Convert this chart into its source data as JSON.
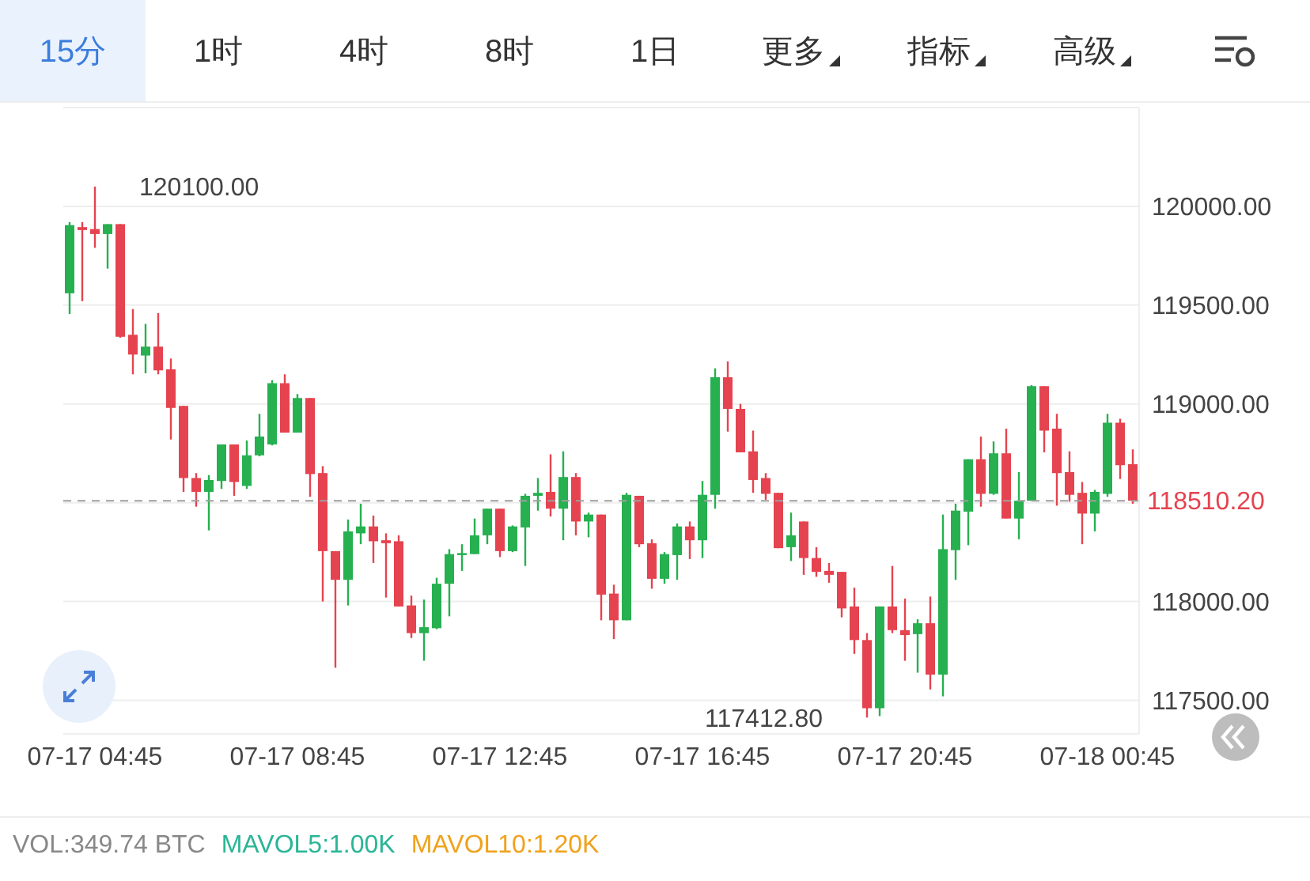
{
  "chart_data": {
    "type": "candlestick",
    "categories": [
      null,
      null,
      "07-17 04:45",
      null,
      null,
      null,
      null,
      null,
      null,
      null,
      null,
      null,
      null,
      null,
      null,
      null,
      null,
      null,
      "07-17 08:45",
      null,
      null,
      null,
      null,
      null,
      null,
      null,
      null,
      null,
      null,
      null,
      null,
      null,
      null,
      null,
      "07-17 12:45",
      null,
      null,
      null,
      null,
      null,
      null,
      null,
      null,
      null,
      null,
      null,
      null,
      null,
      null,
      null,
      "07-17 16:45",
      null,
      null,
      null,
      null,
      null,
      null,
      null,
      null,
      null,
      null,
      null,
      null,
      null,
      null,
      null,
      "07-17 20:45",
      null,
      null,
      null,
      null,
      null,
      null,
      null,
      null,
      null,
      null,
      null,
      null,
      null,
      null,
      null,
      "07-18 00:45",
      null,
      null
    ],
    "ohlc": [
      [
        119560,
        119920,
        119455,
        119905
      ],
      [
        119895,
        119920,
        119520,
        119880
      ],
      [
        119885,
        120100,
        119790,
        119860
      ],
      [
        119860,
        119910,
        119685,
        119910
      ],
      [
        119910,
        119910,
        119335,
        119340
      ],
      [
        119350,
        119480,
        119150,
        119250
      ],
      [
        119245,
        119405,
        119155,
        119290
      ],
      [
        119290,
        119460,
        119150,
        119170
      ],
      [
        119175,
        119230,
        118820,
        118980
      ],
      [
        118990,
        118990,
        118555,
        118625
      ],
      [
        118625,
        118650,
        118480,
        118555
      ],
      [
        118555,
        118640,
        118360,
        118615
      ],
      [
        118610,
        118795,
        118570,
        118795
      ],
      [
        118795,
        118795,
        118535,
        118605
      ],
      [
        118585,
        118815,
        118570,
        118740
      ],
      [
        118740,
        118950,
        118735,
        118835
      ],
      [
        118795,
        119120,
        118790,
        119105
      ],
      [
        119105,
        119150,
        118855,
        118855
      ],
      [
        118855,
        119050,
        118855,
        119030
      ],
      [
        119030,
        119030,
        118530,
        118645
      ],
      [
        118650,
        118685,
        118000,
        118255
      ],
      [
        118255,
        118255,
        117665,
        118110
      ],
      [
        118110,
        118415,
        117980,
        118355
      ],
      [
        118345,
        118495,
        118290,
        118380
      ],
      [
        118380,
        118435,
        118195,
        118305
      ],
      [
        118310,
        118345,
        118020,
        118295
      ],
      [
        118305,
        118335,
        117975,
        117975
      ],
      [
        117980,
        118030,
        117815,
        117840
      ],
      [
        117840,
        118010,
        117700,
        117870
      ],
      [
        117865,
        118120,
        117860,
        118090
      ],
      [
        118090,
        118265,
        117925,
        118240
      ],
      [
        118235,
        118290,
        118155,
        118245
      ],
      [
        118240,
        118420,
        118240,
        118335
      ],
      [
        118335,
        118470,
        118290,
        118470
      ],
      [
        118470,
        118470,
        118225,
        118255
      ],
      [
        118255,
        118385,
        118250,
        118380
      ],
      [
        118375,
        118545,
        118180,
        118535
      ],
      [
        118535,
        118625,
        118460,
        118550
      ],
      [
        118555,
        118745,
        118430,
        118470
      ],
      [
        118470,
        118760,
        118310,
        118630
      ],
      [
        118630,
        118650,
        118335,
        118405
      ],
      [
        118405,
        118450,
        118325,
        118440
      ],
      [
        118440,
        118440,
        117905,
        118035
      ],
      [
        118040,
        118085,
        117810,
        117905
      ],
      [
        117905,
        118550,
        117905,
        118540
      ],
      [
        118535,
        118535,
        118275,
        118290
      ],
      [
        118295,
        118315,
        118065,
        118115
      ],
      [
        118115,
        118250,
        118090,
        118240
      ],
      [
        118235,
        118395,
        118110,
        118380
      ],
      [
        118380,
        118405,
        118215,
        118310
      ],
      [
        118310,
        118610,
        118220,
        118540
      ],
      [
        118540,
        119180,
        118470,
        119135
      ],
      [
        119135,
        119215,
        118860,
        118975
      ],
      [
        118975,
        119000,
        118755,
        118755
      ],
      [
        118760,
        118865,
        118550,
        118615
      ],
      [
        118625,
        118650,
        118515,
        118545
      ],
      [
        118550,
        118550,
        118270,
        118270
      ],
      [
        118275,
        118450,
        118205,
        118335
      ],
      [
        118405,
        118405,
        118135,
        118220
      ],
      [
        118220,
        118275,
        118125,
        118150
      ],
      [
        118155,
        118195,
        118095,
        118135
      ],
      [
        118150,
        118150,
        117920,
        117965
      ],
      [
        117975,
        118070,
        117735,
        117805
      ],
      [
        117805,
        117840,
        117412.8,
        117460
      ],
      [
        117460,
        117975,
        117420,
        117975
      ],
      [
        117975,
        118180,
        117840,
        117855
      ],
      [
        117855,
        118015,
        117700,
        117830
      ],
      [
        117835,
        117910,
        117640,
        117890
      ],
      [
        117890,
        118025,
        117555,
        117630
      ],
      [
        117630,
        118440,
        117520,
        118265
      ],
      [
        118260,
        118495,
        118110,
        118460
      ],
      [
        118455,
        118720,
        118285,
        118720
      ],
      [
        118720,
        118835,
        118480,
        118545
      ],
      [
        118545,
        118810,
        118540,
        118750
      ],
      [
        118750,
        118875,
        118420,
        118420
      ],
      [
        118420,
        118655,
        118315,
        118510
      ],
      [
        118510,
        119095,
        118510,
        119090
      ],
      [
        119090,
        119090,
        118755,
        118865
      ],
      [
        118875,
        118950,
        118485,
        118650
      ],
      [
        118655,
        118760,
        118505,
        118540
      ],
      [
        118550,
        118605,
        118290,
        118445
      ],
      [
        118445,
        118565,
        118355,
        118555
      ],
      [
        118545,
        118950,
        118530,
        118905
      ],
      [
        118905,
        118925,
        118620,
        118690
      ],
      [
        118695,
        118770,
        118495,
        118510.2
      ]
    ],
    "colors": [
      "#26b050",
      "#e5434f",
      "#e5434f",
      "#26b050",
      "#e5434f",
      "#e5434f",
      "#26b050",
      "#e5434f",
      "#e5434f",
      "#e5434f",
      "#e5434f",
      "#26b050",
      "#26b050",
      "#e5434f",
      "#26b050",
      "#26b050",
      "#26b050",
      "#e5434f",
      "#26b050",
      "#e5434f",
      "#e5434f",
      "#e5434f",
      "#26b050",
      "#26b050",
      "#e5434f",
      "#e5434f",
      "#e5434f",
      "#e5434f",
      "#26b050",
      "#26b050",
      "#26b050",
      "#26b050",
      "#26b050",
      "#26b050",
      "#e5434f",
      "#26b050",
      "#26b050",
      "#26b050",
      "#e5434f",
      "#26b050",
      "#e5434f",
      "#26b050",
      "#e5434f",
      "#e5434f",
      "#26b050",
      "#e5434f",
      "#e5434f",
      "#26b050",
      "#26b050",
      "#e5434f",
      "#26b050",
      "#26b050",
      "#e5434f",
      "#e5434f",
      "#e5434f",
      "#e5434f",
      "#e5434f",
      "#26b050",
      "#e5434f",
      "#e5434f",
      "#e5434f",
      "#e5434f",
      "#e5434f",
      "#e5434f",
      "#26b050",
      "#e5434f",
      "#e5434f",
      "#26b050",
      "#e5434f",
      "#26b050",
      "#26b050",
      "#26b050",
      "#e5434f",
      "#26b050",
      "#e5434f",
      "#26b050",
      "#26b050",
      "#e5434f",
      "#e5434f",
      "#e5434f",
      "#e5434f",
      "#26b050",
      "#26b050",
      "#e5434f",
      "#e5434f"
    ],
    "ylim": [
      117330,
      120500
    ],
    "yticks": [
      {
        "value": 117500,
        "label": "117500.00"
      },
      {
        "value": 118000,
        "label": "118000.00"
      },
      {
        "value": 118500,
        "label": null
      },
      {
        "value": 119000,
        "label": "119000.00"
      },
      {
        "value": 119500,
        "label": "119500.00"
      },
      {
        "value": 120000,
        "label": "120000.00"
      }
    ],
    "grid": "y",
    "ref_lines": [
      {
        "axis": "y",
        "value": 118510.2,
        "label": "118510.20",
        "color": "#9e9e9e",
        "line_style": "dashed"
      }
    ],
    "annotations": [
      "15分",
      "1时",
      "4时",
      "8时",
      "1日",
      "更多",
      "指标",
      "高级",
      "VOL:349.74 BTC",
      "MAVOL5:1.00K",
      "MAVOL10:1.20K",
      "120100.00",
      "117412.80"
    ]
  }
}
